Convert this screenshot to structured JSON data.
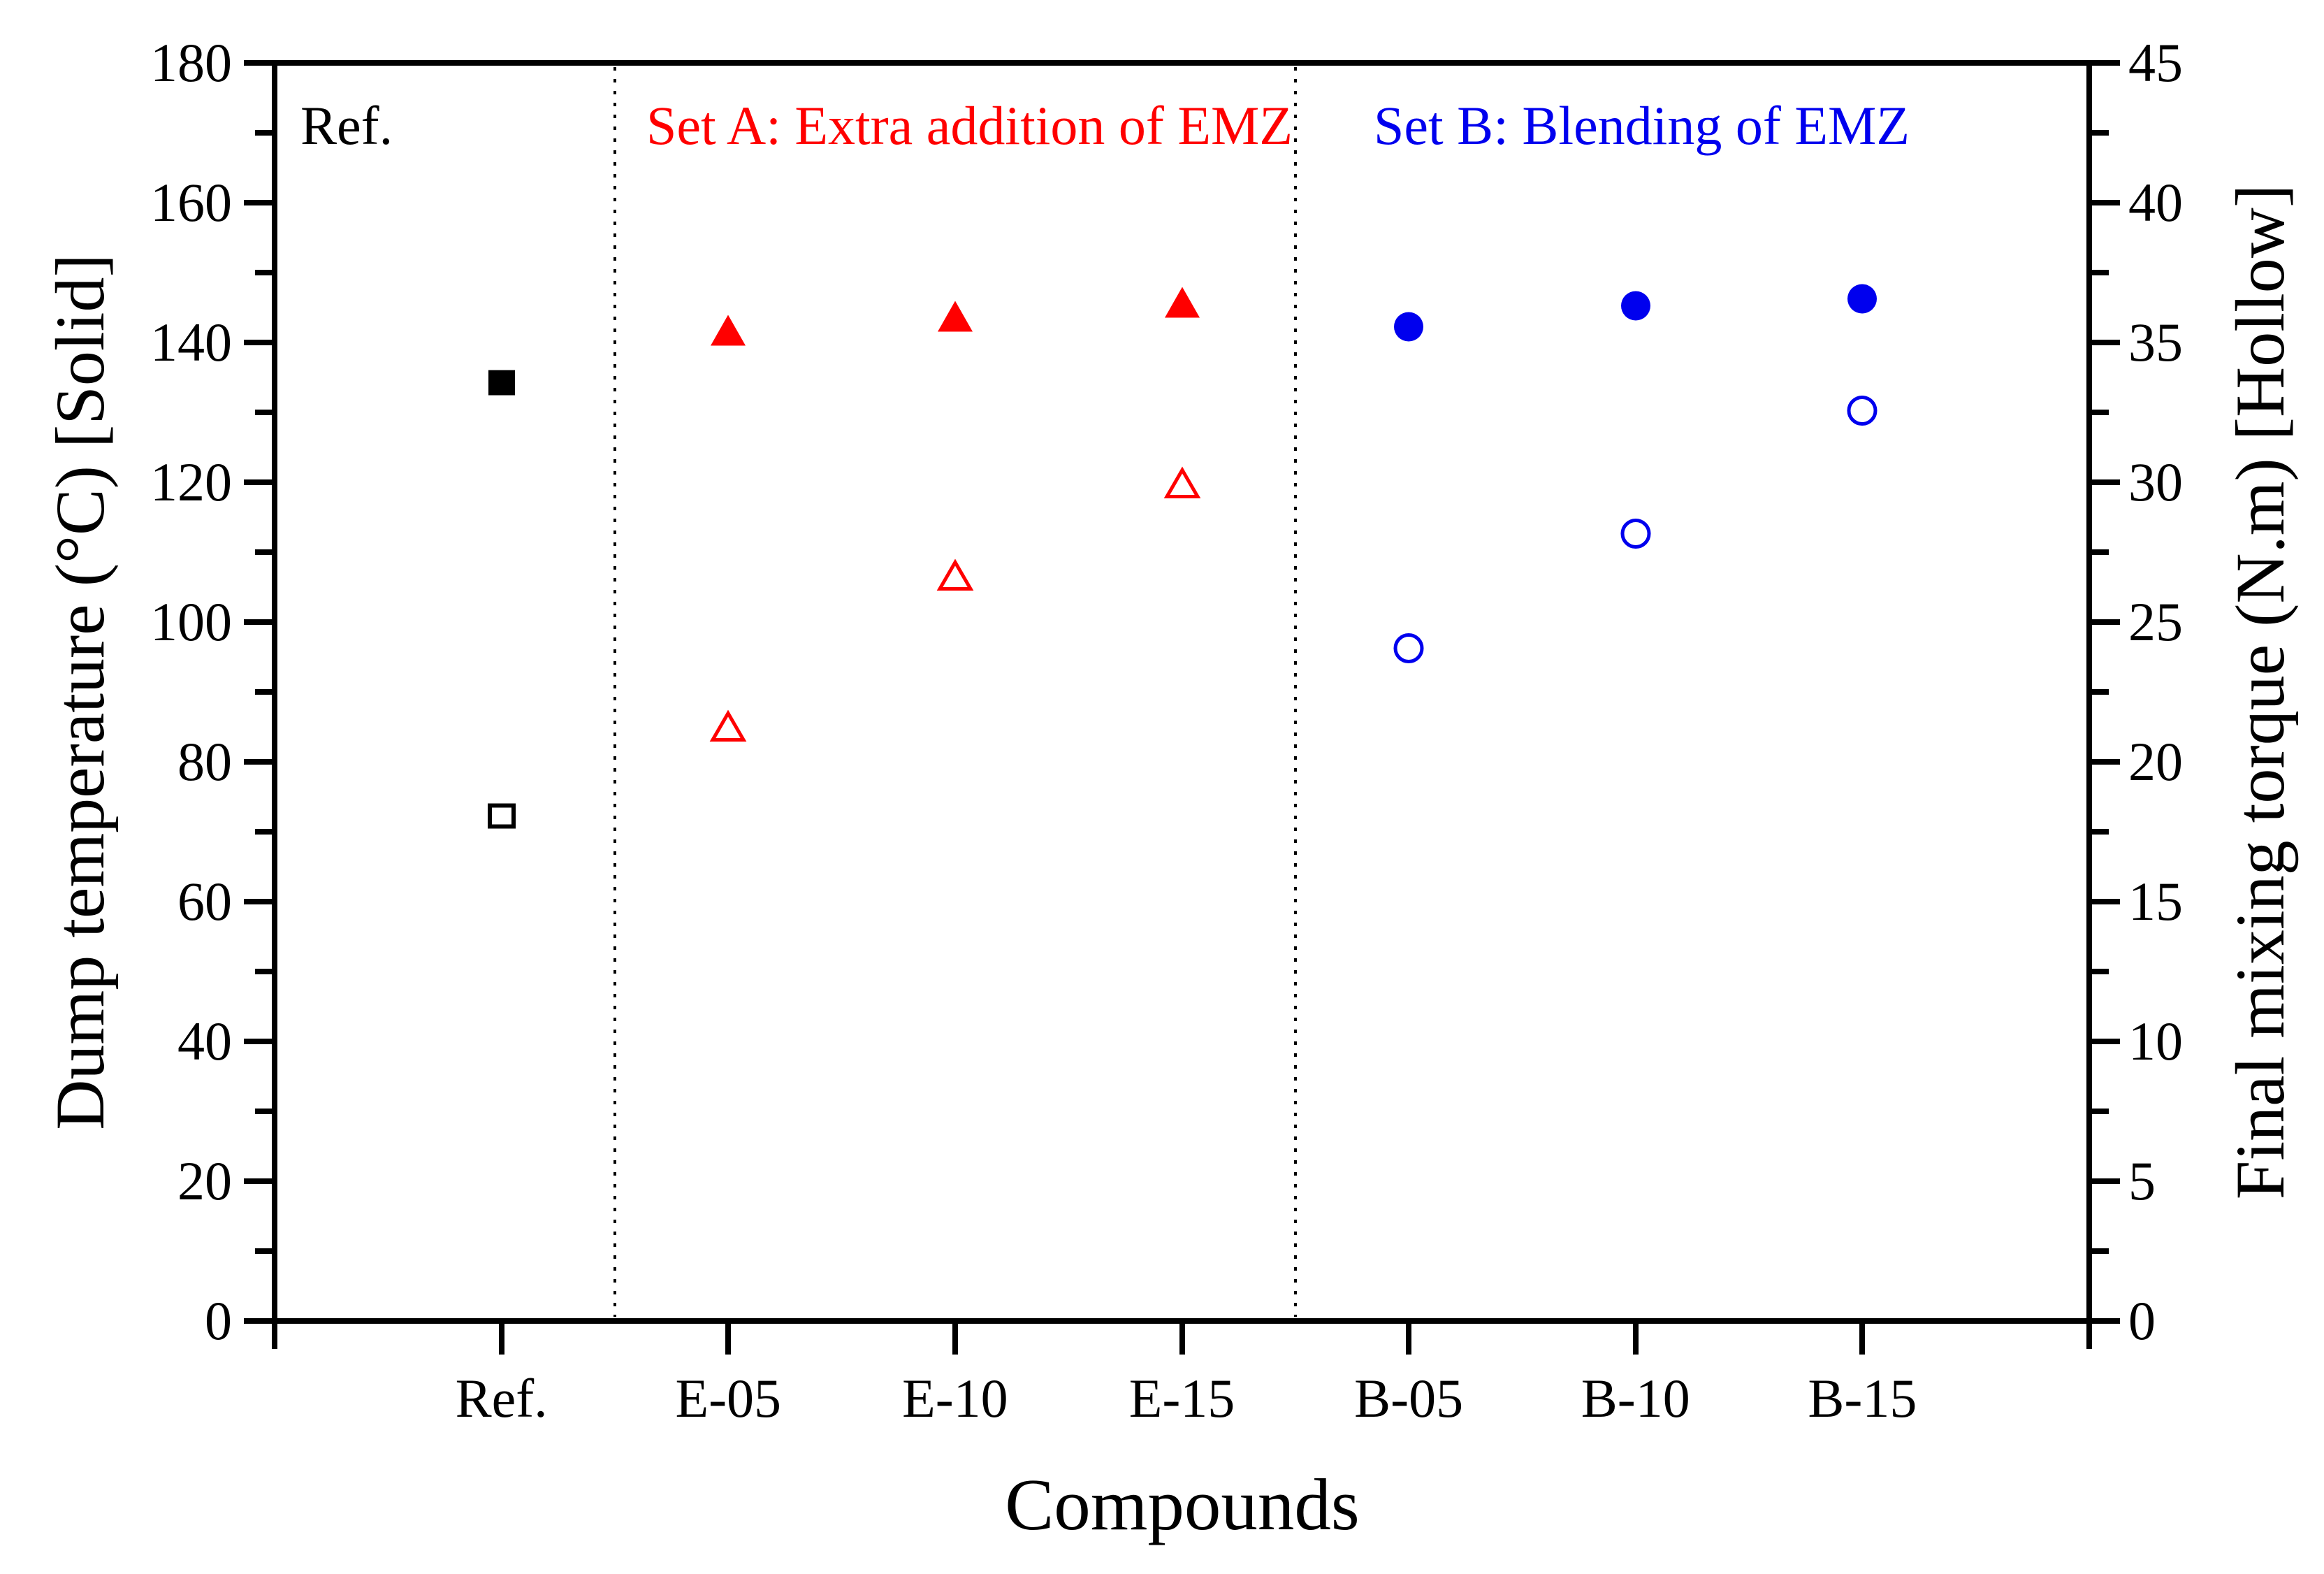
{
  "figure": {
    "annotations": {
      "ref_label": "Ref.",
      "set_a_label": "Set A: Extra addition of EMZ",
      "set_b_label": "Set B: Blending of EMZ"
    },
    "colors": {
      "ref_black": "#000000",
      "set_a_red": "#ff0000",
      "set_b_blue": "#0000ee"
    }
  },
  "chart_data": {
    "type": "scatter",
    "title": "",
    "xlabel": "Compounds",
    "ylabel_left": "Dump temperature (°C) [Solid]",
    "ylabel_right": "Final mixing torque (N.m) [Hollow]",
    "categories": [
      "Ref.",
      "E-05",
      "E-10",
      "E-15",
      "B-05",
      "B-10",
      "B-15"
    ],
    "groups": [
      {
        "label": "Ref.",
        "color": "#000000",
        "categories": [
          "Ref."
        ]
      },
      {
        "label": "Set A: Extra addition of EMZ",
        "color": "#ff0000",
        "categories": [
          "E-05",
          "E-10",
          "E-15"
        ]
      },
      {
        "label": "Set B: Blending of EMZ",
        "color": "#0000ee",
        "categories": [
          "B-05",
          "B-10",
          "B-15"
        ]
      }
    ],
    "series": [
      {
        "name": "Dump temperature (Solid markers)",
        "axis": "left",
        "units": "°C",
        "points": [
          {
            "category": "Ref.",
            "value": 134.0,
            "marker": "square-solid",
            "color": "#000000"
          },
          {
            "category": "E-05",
            "value": 141.5,
            "marker": "triangle-solid",
            "color": "#ff0000"
          },
          {
            "category": "E-10",
            "value": 143.5,
            "marker": "triangle-solid",
            "color": "#ff0000"
          },
          {
            "category": "E-15",
            "value": 145.5,
            "marker": "triangle-solid",
            "color": "#ff0000"
          },
          {
            "category": "B-05",
            "value": 142.0,
            "marker": "circle-solid",
            "color": "#0000ee"
          },
          {
            "category": "B-10",
            "value": 145.0,
            "marker": "circle-solid",
            "color": "#0000ee"
          },
          {
            "category": "B-15",
            "value": 146.0,
            "marker": "circle-solid",
            "color": "#0000ee"
          }
        ]
      },
      {
        "name": "Final mixing torque (Hollow markers)",
        "axis": "right",
        "units": "N.m",
        "points": [
          {
            "category": "Ref.",
            "value": 18.0,
            "marker": "square-hollow",
            "color": "#000000"
          },
          {
            "category": "E-05",
            "value": 21.2,
            "marker": "triangle-hollow",
            "color": "#ff0000"
          },
          {
            "category": "E-10",
            "value": 26.6,
            "marker": "triangle-hollow",
            "color": "#ff0000"
          },
          {
            "category": "E-15",
            "value": 29.9,
            "marker": "triangle-hollow",
            "color": "#ff0000"
          },
          {
            "category": "B-05",
            "value": 24.0,
            "marker": "circle-hollow",
            "color": "#0000ee"
          },
          {
            "category": "B-10",
            "value": 28.1,
            "marker": "circle-hollow",
            "color": "#0000ee"
          },
          {
            "category": "B-15",
            "value": 32.5,
            "marker": "circle-hollow",
            "color": "#0000ee"
          }
        ]
      }
    ],
    "left_axis": {
      "min": 0,
      "max": 180,
      "major_ticks": [
        0,
        20,
        40,
        60,
        80,
        100,
        120,
        140,
        160,
        180
      ],
      "minor_step": 10
    },
    "right_axis": {
      "min": 0,
      "max": 45,
      "major_ticks": [
        0,
        5,
        10,
        15,
        20,
        25,
        30,
        35,
        40,
        45
      ],
      "minor_step": 2.5
    },
    "separator_fractions": [
      0.1875,
      0.5625
    ],
    "grid": "off",
    "legend": "none (labels annotated inside plot)"
  }
}
